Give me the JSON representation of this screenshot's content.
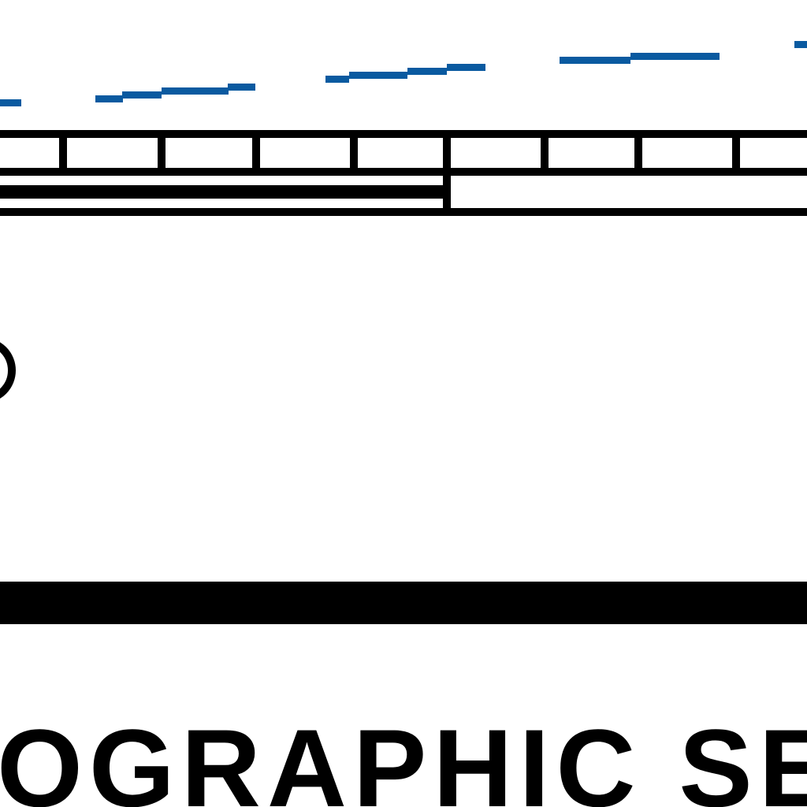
{
  "colors": {
    "contour_line": "#0a5aa0",
    "ink": "#000000",
    "background": "#ffffff"
  },
  "scale_bar": {
    "style": "alternating black and white segments",
    "major_divisions": 2,
    "minor_divisions_left": 5,
    "minor_divisions_right": 4
  },
  "footer": {
    "title_fragment": "OGRAPHIC SE"
  }
}
